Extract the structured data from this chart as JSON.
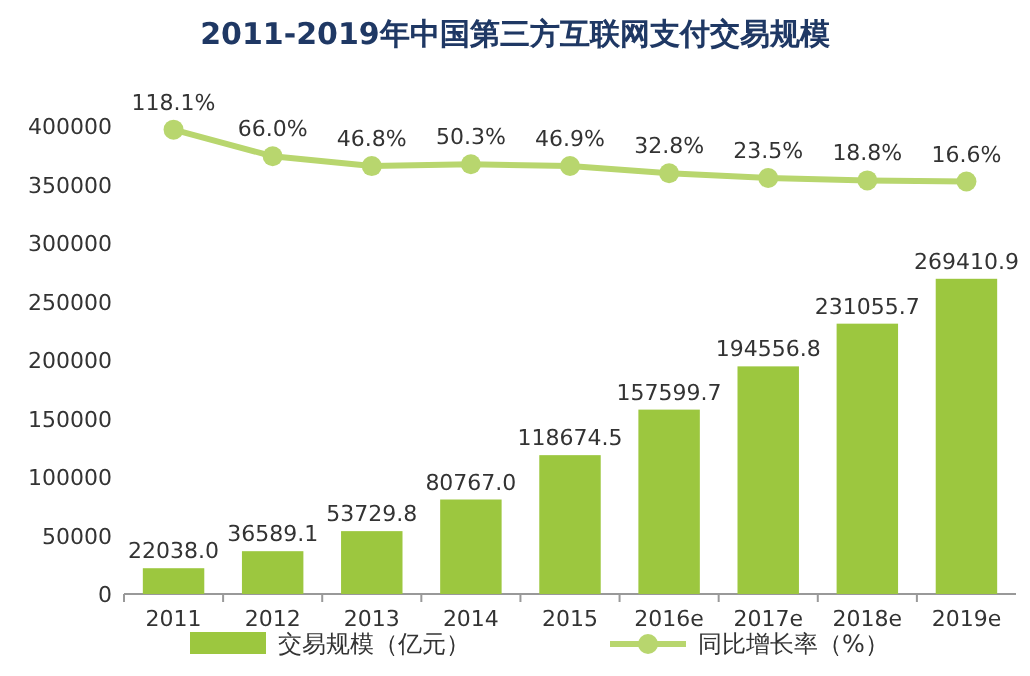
{
  "chart_data": {
    "type": "bar",
    "title": "2011-2019年中国第三方互联网支付交易规模",
    "categories": [
      "2011",
      "2012",
      "2013",
      "2014",
      "2015",
      "2016e",
      "2017e",
      "2018e",
      "2019e"
    ],
    "series": [
      {
        "name": "交易规模（亿元）",
        "color": "#9cc73f",
        "values": [
          22038.0,
          36589.1,
          53729.8,
          80767.0,
          118674.5,
          157599.7,
          194556.8,
          231055.7,
          269410.9
        ],
        "value_labels": [
          "22038.0",
          "36589.1",
          "53729.8",
          "80767.0",
          "118674.5",
          "157599.7",
          "194556.8",
          "231055.7",
          "269410.9"
        ]
      },
      {
        "name": "同比增长率（%）",
        "type": "line",
        "axis": "y2",
        "color": "#b8d66e",
        "values": [
          118.1,
          66.0,
          46.8,
          50.3,
          46.9,
          32.8,
          23.5,
          18.8,
          16.6
        ],
        "value_labels": [
          "118.1%",
          "66.0%",
          "46.8%",
          "50.3%",
          "46.9%",
          "32.8%",
          "23.5%",
          "18.8%",
          "16.6%"
        ]
      }
    ],
    "ylim": [
      0,
      400000
    ],
    "yticks": [
      0,
      50000,
      100000,
      150000,
      200000,
      250000,
      300000,
      350000,
      400000
    ],
    "marker": "circle",
    "legend": "bottom",
    "grid": false
  }
}
